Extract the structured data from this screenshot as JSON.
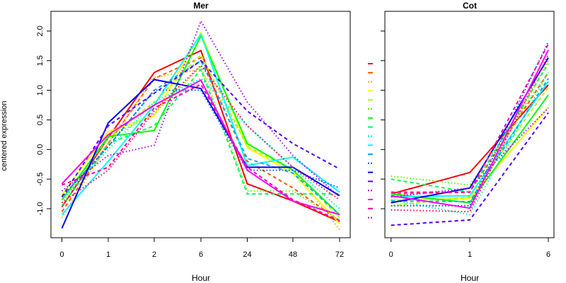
{
  "chart_data": [
    {
      "type": "line",
      "title": "Mer",
      "xlabel": "Hour",
      "ylabel": "centered expression",
      "categories": [
        "0",
        "1",
        "2",
        "6",
        "24",
        "48",
        "72"
      ],
      "yticks": [
        "-1.0",
        "-0.5",
        "0.0",
        "0.5",
        "1.0",
        "1.5",
        "2.0"
      ],
      "ylim": [
        -1.49,
        2.33
      ],
      "grid": false,
      "series": [
        {
          "color": "#FF0000",
          "lty": "solid",
          "values": [
            -0.97,
            0.2,
            1.3,
            1.67,
            -0.58,
            -0.87,
            -1.22
          ]
        },
        {
          "color": "#FF5500",
          "lty": "dashed",
          "values": [
            -1.05,
            0.1,
            1.2,
            1.55,
            -0.2,
            -0.65,
            -1.2
          ]
        },
        {
          "color": "#FFAA00",
          "lty": "dotted",
          "values": [
            -1.15,
            0.1,
            1.22,
            1.35,
            0.1,
            -0.35,
            -1.35
          ]
        },
        {
          "color": "#FFFF00",
          "lty": "solid",
          "values": [
            -0.77,
            0.3,
            0.57,
            1.97,
            0.03,
            -0.4,
            -1.25
          ]
        },
        {
          "color": "#AAFF00",
          "lty": "dashed",
          "values": [
            -0.85,
            0.2,
            0.8,
            1.6,
            0.05,
            -0.35,
            -1.15
          ]
        },
        {
          "color": "#55FF00",
          "lty": "dotted",
          "values": [
            -0.9,
            0.2,
            0.6,
            1.4,
            -0.7,
            -0.7,
            -1.2
          ]
        },
        {
          "color": "#00FF00",
          "lty": "solid",
          "values": [
            -0.85,
            0.22,
            0.32,
            1.92,
            0.1,
            -0.35,
            -1.1
          ]
        },
        {
          "color": "#00FF55",
          "lty": "dashed",
          "values": [
            -0.95,
            0.1,
            0.4,
            1.35,
            -0.75,
            -0.75,
            -0.75
          ]
        },
        {
          "color": "#00FFAA",
          "lty": "dotted",
          "values": [
            -0.85,
            0.0,
            0.8,
            1.2,
            0.4,
            -0.3,
            -1.0
          ]
        },
        {
          "color": "#00FFFF",
          "lty": "solid",
          "values": [
            -1.1,
            -0.2,
            0.75,
            1.95,
            -0.27,
            -0.13,
            -0.72
          ]
        },
        {
          "color": "#00AAFF",
          "lty": "dashed",
          "values": [
            -0.8,
            0.05,
            1.0,
            1.5,
            -0.15,
            -0.4,
            -1.1
          ]
        },
        {
          "color": "#0055FF",
          "lty": "dotted",
          "values": [
            -0.8,
            0.05,
            1.0,
            1.0,
            -0.35,
            -0.35,
            -0.65
          ]
        },
        {
          "color": "#0000FF",
          "lty": "solid",
          "values": [
            -1.33,
            0.45,
            1.18,
            1.03,
            -0.3,
            -0.3,
            -0.78
          ]
        },
        {
          "color": "#5500FF",
          "lty": "dashed",
          "values": [
            -0.8,
            0.4,
            0.95,
            1.5,
            0.65,
            0.1,
            -0.33
          ]
        },
        {
          "color": "#AA00FF",
          "lty": "dotted",
          "values": [
            -0.7,
            -0.1,
            0.07,
            2.17,
            0.8,
            -0.1,
            -0.8
          ]
        },
        {
          "color": "#FF00FF",
          "lty": "solid",
          "values": [
            -0.58,
            0.25,
            0.75,
            1.17,
            -0.35,
            -0.87,
            -1.1
          ]
        },
        {
          "color": "#FF00AA",
          "lty": "dashed",
          "values": [
            -0.6,
            -0.3,
            0.7,
            1.1,
            -0.3,
            -0.85,
            -1.2
          ]
        },
        {
          "color": "#FF0055",
          "lty": "dotted",
          "values": [
            -0.9,
            -0.35,
            0.65,
            1.42,
            0.4,
            -0.3,
            -0.85
          ]
        }
      ]
    },
    {
      "type": "line",
      "title": "Cot",
      "xlabel": "Hour",
      "categories": [
        "0",
        "1",
        "6"
      ],
      "ylim": [
        -1.49,
        2.33
      ],
      "grid": false,
      "legend": "left (line samples only, no text)",
      "series": [
        {
          "color": "#FF0000",
          "lty": "solid",
          "values": [
            -0.75,
            -0.39,
            1.09
          ]
        },
        {
          "color": "#FF5500",
          "lty": "dashed",
          "values": [
            -0.75,
            -0.72,
            1.3
          ]
        },
        {
          "color": "#FFAA00",
          "lty": "dotted",
          "values": [
            -0.95,
            -0.95,
            1.5
          ]
        },
        {
          "color": "#FFFF00",
          "lty": "solid",
          "values": [
            -0.85,
            -0.83,
            0.71
          ]
        },
        {
          "color": "#AAFF00",
          "lty": "dashed",
          "values": [
            -0.95,
            -0.8,
            1.05
          ]
        },
        {
          "color": "#55FF00",
          "lty": "dotted",
          "values": [
            -0.45,
            -0.6,
            1.3
          ]
        },
        {
          "color": "#00FF00",
          "lty": "solid",
          "values": [
            -0.75,
            -0.9,
            0.92
          ]
        },
        {
          "color": "#00FF55",
          "lty": "dashed",
          "values": [
            -0.5,
            -0.72,
            1.45
          ]
        },
        {
          "color": "#00FFAA",
          "lty": "dotted",
          "values": [
            -0.85,
            -1.1,
            1.3
          ]
        },
        {
          "color": "#00FFFF",
          "lty": "solid",
          "values": [
            -0.8,
            -0.78,
            1.15
          ]
        },
        {
          "color": "#00AAFF",
          "lty": "dashed",
          "values": [
            -0.87,
            -0.88,
            1.2
          ]
        },
        {
          "color": "#0055FF",
          "lty": "dotted",
          "values": [
            -0.95,
            -0.95,
            1.82
          ]
        },
        {
          "color": "#0000FF",
          "lty": "solid",
          "values": [
            -0.9,
            -0.65,
            1.55
          ]
        },
        {
          "color": "#5500FF",
          "lty": "dashed",
          "values": [
            -1.28,
            -1.19,
            0.62
          ]
        },
        {
          "color": "#AA00FF",
          "lty": "dotted",
          "values": [
            -0.8,
            -0.65,
            0.7
          ]
        },
        {
          "color": "#FF00FF",
          "lty": "solid",
          "values": [
            -0.78,
            -0.99,
            1.68
          ]
        },
        {
          "color": "#FF00AA",
          "lty": "dashed",
          "values": [
            -0.72,
            -0.72,
            1.78
          ]
        },
        {
          "color": "#FF0055",
          "lty": "dotted",
          "values": [
            -1.02,
            -1.05,
            1.6
          ]
        }
      ]
    }
  ]
}
